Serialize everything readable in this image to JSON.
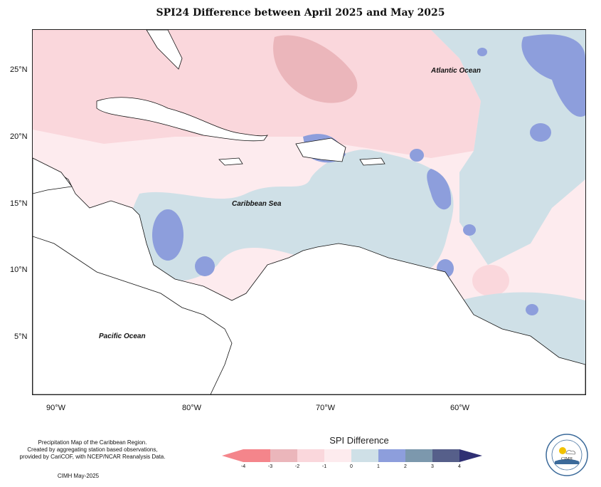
{
  "title": "SPI24 Difference between April 2025 and May 2025",
  "map": {
    "lat_labels": [
      "25°N",
      "20°N",
      "15°N",
      "10°N",
      "5°N"
    ],
    "lon_labels": [
      "90°W",
      "80°W",
      "70°W",
      "60°W"
    ],
    "labels": {
      "atlantic": "Atlantic Ocean",
      "caribbean": "Caribbean Sea",
      "pacific": "Pacific Ocean"
    }
  },
  "legend": {
    "title": "SPI Difference",
    "ticks": [
      "-4",
      "-3",
      "-2",
      "-1",
      "0",
      "1",
      "2",
      "3",
      "4"
    ],
    "colors": [
      "#f4858b",
      "#ebb6bb",
      "#fad7dc",
      "#fdebee",
      "#cfe0e7",
      "#8d9edc",
      "#7c98ad",
      "#565f8a",
      "#2f2f73"
    ]
  },
  "notes": {
    "line1": "Precipitation Map of the Caribbean Region.",
    "line2": "Created by aggregating station based observations,",
    "line3": "provided by CariCOF, with NCEP/NCAR Reanalysis Data.",
    "credit": "CIMH May-2025"
  },
  "logo": {
    "text": "CIMH",
    "icon": "cimh-sun-cloud-logo"
  }
}
